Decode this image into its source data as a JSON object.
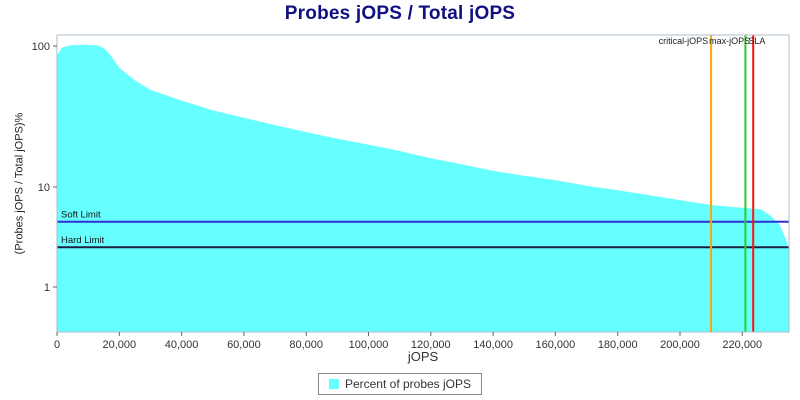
{
  "colors": {
    "title": "#101080",
    "axis_text": "#333333",
    "tick_mark": "#666666",
    "plot_border": "#a9bcc9",
    "background": "#ffffff"
  },
  "chart_data": {
    "type": "area",
    "title": "Probes jOPS / Total jOPS",
    "xlabel": "jOPS",
    "ylabel": "(Probes jOPS / Total jOPS)%",
    "y_scale": "log",
    "y_ticks": [
      1,
      10,
      100
    ],
    "x_ticks": [
      0,
      20000,
      40000,
      60000,
      80000,
      100000,
      120000,
      140000,
      160000,
      180000,
      200000,
      220000
    ],
    "x_max": 235000,
    "grid": false,
    "legend_position": "bottom",
    "series": [
      {
        "name": "Percent of probes jOPS",
        "color": "#66ffff",
        "x": [
          0,
          1500,
          4000,
          8000,
          13000,
          15000,
          17000,
          20000,
          25000,
          30000,
          40000,
          50000,
          60000,
          70000,
          80000,
          90000,
          100000,
          110000,
          120000,
          130000,
          140000,
          150000,
          160000,
          170000,
          180000,
          190000,
          200000,
          210000,
          215000,
          220000,
          226000,
          229000,
          232000,
          234000,
          235000
        ],
        "values": [
          86,
          97,
          101,
          102,
          101,
          97,
          87,
          70,
          57,
          49,
          41,
          35,
          31,
          27.5,
          24.5,
          22,
          20,
          18,
          16,
          14.5,
          13,
          12,
          11.2,
          10.2,
          9.3,
          8.3,
          7.4,
          6.6,
          6.4,
          6.2,
          6.0,
          5.2,
          4.2,
          3.0,
          2.3
        ]
      }
    ],
    "limit_lines": [
      {
        "label": "Soft Limit",
        "value": 4.5,
        "color": "#2f2fd3"
      },
      {
        "label": "Hard Limit",
        "value": 2.5,
        "color": "#1f1f3f"
      }
    ],
    "markers": [
      {
        "label": "critical-jOPS",
        "x": 210000,
        "color": "#ffa500",
        "label_anchor": "end"
      },
      {
        "label": "SLA",
        "x": 221000,
        "color": "#2ecc2e",
        "label_anchor": "start"
      },
      {
        "label": "max-jOPS",
        "x": 223500,
        "color": "#ff1111",
        "label_anchor": "end"
      }
    ],
    "legend": {
      "label": "Percent of probes jOPS",
      "swatch_color": "#66ffff"
    }
  }
}
